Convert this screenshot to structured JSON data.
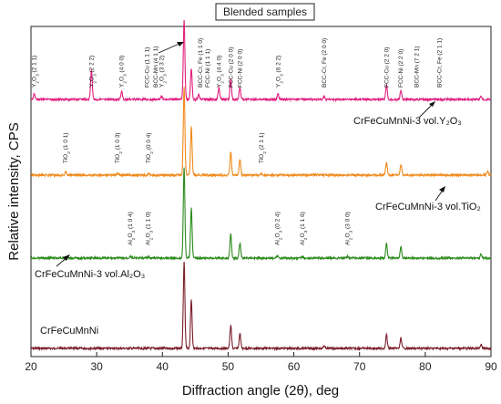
{
  "chart_data": {
    "type": "line",
    "title": "Blended samples",
    "xlabel": "Diffraction angle (2θ), deg",
    "ylabel": "Relative intensity, CPS",
    "xlim": [
      20,
      90
    ],
    "x_ticks": [
      20,
      30,
      40,
      50,
      60,
      70,
      80,
      90
    ],
    "grid": false,
    "series": [
      {
        "name": "CrFeCuMnNi",
        "color": "#7a1f2b",
        "peaks": [
          [
            43.3,
            1.0
          ],
          [
            44.4,
            0.57
          ],
          [
            50.4,
            0.27
          ],
          [
            51.8,
            0.17
          ],
          [
            64.6,
            0.03
          ],
          [
            74.1,
            0.16
          ],
          [
            76.3,
            0.12
          ],
          [
            88.5,
            0.04
          ]
        ]
      },
      {
        "name": "CrFeCuMnNi-3 vol.Al₂O₃",
        "color": "#2e8b1f",
        "peaks": [
          [
            25.6,
            0.015
          ],
          [
            35.1,
            0.02
          ],
          [
            37.8,
            0.015
          ],
          [
            43.3,
            1.0
          ],
          [
            44.4,
            0.56
          ],
          [
            50.4,
            0.27
          ],
          [
            51.8,
            0.17
          ],
          [
            57.5,
            0.02
          ],
          [
            61.3,
            0.015
          ],
          [
            68.2,
            0.02
          ],
          [
            74.1,
            0.16
          ],
          [
            76.3,
            0.12
          ],
          [
            88.5,
            0.04
          ]
        ]
      },
      {
        "name": "CrFeCuMnNi-3 vol.TiO₂",
        "color": "#f08a1c",
        "peaks": [
          [
            25.3,
            0.04
          ],
          [
            33.2,
            0.02
          ],
          [
            37.9,
            0.02
          ],
          [
            43.3,
            1.0
          ],
          [
            44.4,
            0.55
          ],
          [
            50.4,
            0.26
          ],
          [
            51.8,
            0.18
          ],
          [
            55.1,
            0.02
          ],
          [
            74.1,
            0.15
          ],
          [
            76.3,
            0.12
          ],
          [
            89.5,
            0.04
          ]
        ]
      },
      {
        "name": "CrFeCuMnNi-3 vol.Y₂O₃",
        "color": "#e0207f",
        "peaks": [
          [
            20.5,
            0.07
          ],
          [
            29.2,
            0.38
          ],
          [
            33.8,
            0.1
          ],
          [
            39.9,
            0.04
          ],
          [
            43.3,
            1.0
          ],
          [
            44.4,
            0.4
          ],
          [
            45.5,
            0.06
          ],
          [
            48.6,
            0.15
          ],
          [
            50.4,
            0.25
          ],
          [
            51.8,
            0.15
          ],
          [
            57.6,
            0.07
          ],
          [
            64.6,
            0.03
          ],
          [
            74.1,
            0.18
          ],
          [
            76.3,
            0.12
          ],
          [
            88.5,
            0.04
          ]
        ]
      }
    ],
    "peak_labels": [
      {
        "series": 3,
        "x": 20.5,
        "parts": [
          "Y",
          "2",
          "O",
          "3",
          " (2 1 1)"
        ]
      },
      {
        "series": 3,
        "x": 29.2,
        "parts": [
          "Y",
          "2",
          "O",
          "3",
          " (2 2 2)"
        ]
      },
      {
        "series": 3,
        "x": 33.8,
        "parts": [
          "Y",
          "2",
          "O",
          "3",
          " (4 0 0)"
        ]
      },
      {
        "series": 3,
        "x": 39.9,
        "parts": [
          "Y",
          "2",
          "O",
          "3",
          " (3 3 2)"
        ]
      },
      {
        "series": 3,
        "x": 37.7,
        "parts": [
          "FCC-Cu (1 1 1)"
        ]
      },
      {
        "series": 3,
        "x": 39.0,
        "parts": [
          "BCC-Mn (4 1 1)"
        ]
      },
      {
        "series": 3,
        "x": 45.8,
        "parts": [
          "BCC-Cr, Fe (1 1 0)"
        ]
      },
      {
        "series": 3,
        "x": 46.9,
        "parts": [
          "FCC-Ni (1 1 1)"
        ]
      },
      {
        "series": 3,
        "x": 48.6,
        "parts": [
          "Y",
          "2",
          "O",
          "3",
          " (4 4 0)"
        ]
      },
      {
        "series": 3,
        "x": 50.4,
        "parts": [
          "FCC-Cu (2 0 0)"
        ]
      },
      {
        "series": 3,
        "x": 51.8,
        "parts": [
          "FCC-Ni (2 0 0)"
        ]
      },
      {
        "series": 3,
        "x": 57.6,
        "parts": [
          "Y",
          "2",
          "O",
          "3",
          " (6 2 2)"
        ]
      },
      {
        "series": 3,
        "x": 64.6,
        "parts": [
          "BCC-Cr, Fe (2 0 0)"
        ]
      },
      {
        "series": 3,
        "x": 74.1,
        "parts": [
          "FCC-Cu (2 2 0)"
        ]
      },
      {
        "series": 3,
        "x": 76.3,
        "parts": [
          "FCC-Ni (2 2 0)"
        ]
      },
      {
        "series": 3,
        "x": 78.7,
        "parts": [
          "BCC-Mn (7 2 1)"
        ]
      },
      {
        "series": 3,
        "x": 82.2,
        "parts": [
          "BCC-Cr, Fe (2 1 1)"
        ]
      },
      {
        "series": 2,
        "x": 25.3,
        "parts": [
          "TiO",
          "2",
          "",
          "",
          " (1 0 1)"
        ]
      },
      {
        "series": 2,
        "x": 33.2,
        "parts": [
          "TiO",
          "2",
          "",
          "",
          " (1 0 3)"
        ]
      },
      {
        "series": 2,
        "x": 37.9,
        "parts": [
          "TiO",
          "2",
          "",
          "",
          " (0 0 4)"
        ]
      },
      {
        "series": 2,
        "x": 55.1,
        "parts": [
          "TiO",
          "2",
          "",
          "",
          " (2 1 1)"
        ]
      },
      {
        "series": 1,
        "x": 35.1,
        "parts": [
          "Al",
          "2",
          "O",
          "3",
          " (1 0 4)"
        ]
      },
      {
        "series": 1,
        "x": 37.8,
        "parts": [
          "Al",
          "2",
          "O",
          "3",
          " (1 1 0)"
        ]
      },
      {
        "series": 1,
        "x": 57.5,
        "parts": [
          "Al",
          "2",
          "O",
          "3",
          " (0 2 4)"
        ]
      },
      {
        "series": 1,
        "x": 61.3,
        "parts": [
          "Al",
          "2",
          "O",
          "3",
          " (1 1 6)"
        ]
      },
      {
        "series": 1,
        "x": 68.2,
        "parts": [
          "Al",
          "2",
          "O",
          "3",
          " (3 0 0)"
        ]
      }
    ]
  }
}
